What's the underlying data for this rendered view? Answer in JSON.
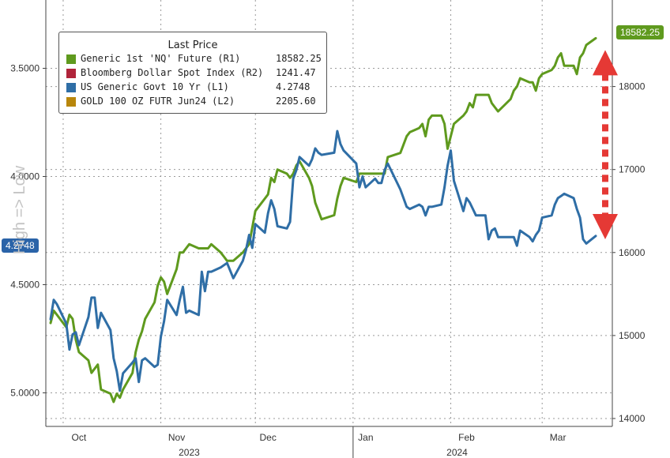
{
  "chart_data": {
    "type": "line",
    "title": "",
    "legend": {
      "title": "Last Price",
      "placement": "top-left",
      "entries": [
        {
          "label": "Generic 1st 'NQ' Future (R1)",
          "value": "18582.25",
          "color": "#5f9a1e"
        },
        {
          "label": "Bloomberg Dollar Spot Index (R2)",
          "value": "1241.47",
          "color": "#b0243a"
        },
        {
          "label": "US Generic Govt 10 Yr (L1)",
          "value": "4.2748",
          "color": "#2f6ea6"
        },
        {
          "label": "GOLD 100 OZ FUTR Jun24 (L2)",
          "value": "2205.60",
          "color": "#b8860b"
        }
      ]
    },
    "left_axis": {
      "inverted": true,
      "range": [
        3.25,
        5.25
      ],
      "ticks": [
        "3.5000",
        "4.0000",
        "4.5000",
        "5.0000"
      ],
      "current_label": "4.2748",
      "side_label": "High => Low"
    },
    "right_axis": {
      "range": [
        13800,
        18900
      ],
      "ticks": [
        "14000",
        "15000",
        "16000",
        "17000",
        "18000"
      ],
      "current_label": "18582.25"
    },
    "x_axis": {
      "start": "2023-09-27",
      "end": "2024-03-18",
      "months": [
        {
          "label": "Oct",
          "date": "2023-10-06"
        },
        {
          "label": "Nov",
          "date": "2023-11-06"
        },
        {
          "label": "Dec",
          "date": "2023-12-05"
        },
        {
          "label": "Jan",
          "date": "2024-01-05"
        },
        {
          "label": "Feb",
          "date": "2024-02-06"
        },
        {
          "label": "Mar",
          "date": "2024-03-06"
        }
      ],
      "years": [
        {
          "label": "2023",
          "date": "2023-11-10"
        },
        {
          "label": "2024",
          "date": "2024-02-03"
        }
      ],
      "month_separators": [
        "2023-10-01",
        "2023-11-01",
        "2023-12-01",
        "2024-01-01",
        "2024-02-01",
        "2024-03-01"
      ],
      "year_separator": "2024-01-01"
    },
    "grid": true,
    "series": [
      {
        "name": "Generic 1st 'NQ' Future (R1)",
        "axis": "right",
        "color": "#5f9a1e",
        "x": [
          "2023-09-27",
          "2023-09-28",
          "2023-09-29",
          "2023-10-02",
          "2023-10-03",
          "2023-10-04",
          "2023-10-05",
          "2023-10-06",
          "2023-10-09",
          "2023-10-10",
          "2023-10-11",
          "2023-10-12",
          "2023-10-13",
          "2023-10-16",
          "2023-10-17",
          "2023-10-18",
          "2023-10-19",
          "2023-10-20",
          "2023-10-23",
          "2023-10-24",
          "2023-10-25",
          "2023-10-26",
          "2023-10-27",
          "2023-10-30",
          "2023-10-31",
          "2023-11-01",
          "2023-11-02",
          "2023-11-03",
          "2023-11-06",
          "2023-11-07",
          "2023-11-08",
          "2023-11-09",
          "2023-11-10",
          "2023-11-13",
          "2023-11-14",
          "2023-11-15",
          "2023-11-16",
          "2023-11-17",
          "2023-11-20",
          "2023-11-21",
          "2023-11-22",
          "2023-11-24",
          "2023-11-27",
          "2023-11-28",
          "2023-11-29",
          "2023-11-30",
          "2023-12-01",
          "2023-12-04",
          "2023-12-05",
          "2023-12-06",
          "2023-12-07",
          "2023-12-08",
          "2023-12-11",
          "2023-12-12",
          "2023-12-13",
          "2023-12-14",
          "2023-12-15",
          "2023-12-18",
          "2023-12-19",
          "2023-12-20",
          "2023-12-21",
          "2023-12-22",
          "2023-12-26",
          "2023-12-27",
          "2023-12-28",
          "2023-12-29",
          "2024-01-02",
          "2024-01-03",
          "2024-01-04",
          "2024-01-05",
          "2024-01-08",
          "2024-01-09",
          "2024-01-10",
          "2024-01-11",
          "2024-01-12",
          "2024-01-16",
          "2024-01-17",
          "2024-01-18",
          "2024-01-19",
          "2024-01-22",
          "2024-01-23",
          "2024-01-24",
          "2024-01-25",
          "2024-01-26",
          "2024-01-29",
          "2024-01-30",
          "2024-01-31",
          "2024-02-01",
          "2024-02-02",
          "2024-02-05",
          "2024-02-06",
          "2024-02-07",
          "2024-02-08",
          "2024-02-09",
          "2024-02-12",
          "2024-02-13",
          "2024-02-14",
          "2024-02-15",
          "2024-02-16",
          "2024-02-20",
          "2024-02-21",
          "2024-02-22",
          "2024-02-23",
          "2024-02-26",
          "2024-02-27",
          "2024-02-28",
          "2024-02-29",
          "2024-03-01",
          "2024-03-04",
          "2024-03-05",
          "2024-03-06",
          "2024-03-07",
          "2024-03-08",
          "2024-03-11",
          "2024-03-12",
          "2024-03-13",
          "2024-03-14",
          "2024-03-15",
          "2024-03-18"
        ],
        "y": [
          15150,
          15300,
          15250,
          15100,
          15250,
          15200,
          14950,
          14800,
          14700,
          14550,
          14600,
          14650,
          14350,
          14300,
          14200,
          14300,
          14250,
          14350,
          14550,
          14800,
          14950,
          15050,
          15200,
          15400,
          15600,
          15700,
          15650,
          15500,
          15800,
          16000,
          16000,
          16050,
          16100,
          16050,
          16050,
          16050,
          16050,
          16100,
          16000,
          15950,
          15900,
          15900,
          16000,
          16050,
          16100,
          16300,
          16500,
          16650,
          16700,
          16900,
          16850,
          17000,
          16950,
          16900,
          16950,
          17050,
          17100,
          16900,
          16800,
          16600,
          16500,
          16400,
          16450,
          16650,
          16800,
          16900,
          16850,
          16950,
          16950,
          16950,
          16950,
          16950,
          16950,
          16950,
          17150,
          17200,
          17300,
          17400,
          17450,
          17500,
          17550,
          17400,
          17600,
          17650,
          17650,
          17550,
          17250,
          17400,
          17550,
          17650,
          17700,
          17800,
          17750,
          17900,
          17900,
          17900,
          17800,
          17750,
          17700,
          17850,
          17950,
          18000,
          18100,
          18050,
          18050,
          17950,
          18100,
          18150,
          18200,
          18250,
          18350,
          18400,
          18250,
          18250,
          18150,
          18350,
          18400,
          18500,
          18582.25
        ]
      },
      {
        "name": "US Generic Govt 10 Yr (L1)",
        "axis": "left",
        "color": "#2f6ea6",
        "x": [
          "2023-09-27",
          "2023-09-28",
          "2023-09-29",
          "2023-10-02",
          "2023-10-03",
          "2023-10-04",
          "2023-10-05",
          "2023-10-06",
          "2023-10-09",
          "2023-10-10",
          "2023-10-11",
          "2023-10-12",
          "2023-10-13",
          "2023-10-16",
          "2023-10-17",
          "2023-10-18",
          "2023-10-19",
          "2023-10-20",
          "2023-10-23",
          "2023-10-24",
          "2023-10-25",
          "2023-10-26",
          "2023-10-27",
          "2023-10-30",
          "2023-10-31",
          "2023-11-01",
          "2023-11-02",
          "2023-11-03",
          "2023-11-06",
          "2023-11-07",
          "2023-11-08",
          "2023-11-09",
          "2023-11-10",
          "2023-11-13",
          "2023-11-14",
          "2023-11-15",
          "2023-11-16",
          "2023-11-17",
          "2023-11-20",
          "2023-11-21",
          "2023-11-22",
          "2023-11-24",
          "2023-11-27",
          "2023-11-28",
          "2023-11-29",
          "2023-11-30",
          "2023-12-01",
          "2023-12-04",
          "2023-12-05",
          "2023-12-06",
          "2023-12-07",
          "2023-12-08",
          "2023-12-11",
          "2023-12-12",
          "2023-12-13",
          "2023-12-14",
          "2023-12-15",
          "2023-12-18",
          "2023-12-19",
          "2023-12-20",
          "2023-12-21",
          "2023-12-22",
          "2023-12-26",
          "2023-12-27",
          "2023-12-28",
          "2023-12-29",
          "2024-01-02",
          "2024-01-03",
          "2024-01-04",
          "2024-01-05",
          "2024-01-08",
          "2024-01-09",
          "2024-01-10",
          "2024-01-11",
          "2024-01-12",
          "2024-01-16",
          "2024-01-17",
          "2024-01-18",
          "2024-01-19",
          "2024-01-22",
          "2024-01-23",
          "2024-01-24",
          "2024-01-25",
          "2024-01-26",
          "2024-01-29",
          "2024-01-30",
          "2024-01-31",
          "2024-02-01",
          "2024-02-02",
          "2024-02-05",
          "2024-02-06",
          "2024-02-07",
          "2024-02-08",
          "2024-02-09",
          "2024-02-12",
          "2024-02-13",
          "2024-02-14",
          "2024-02-15",
          "2024-02-16",
          "2024-02-20",
          "2024-02-21",
          "2024-02-22",
          "2024-02-23",
          "2024-02-26",
          "2024-02-27",
          "2024-02-28",
          "2024-02-29",
          "2024-03-01",
          "2024-03-04",
          "2024-03-05",
          "2024-03-06",
          "2024-03-07",
          "2024-03-08",
          "2024-03-11",
          "2024-03-12",
          "2024-03-13",
          "2024-03-14",
          "2024-03-15",
          "2024-03-18"
        ],
        "y": [
          4.66,
          4.57,
          4.59,
          4.68,
          4.8,
          4.73,
          4.72,
          4.78,
          4.65,
          4.56,
          4.56,
          4.7,
          4.63,
          4.71,
          4.84,
          4.9,
          4.99,
          4.91,
          4.86,
          4.84,
          4.95,
          4.85,
          4.84,
          4.88,
          4.87,
          4.74,
          4.67,
          4.57,
          4.64,
          4.57,
          4.51,
          4.63,
          4.62,
          4.64,
          4.44,
          4.53,
          4.44,
          4.44,
          4.42,
          4.41,
          4.4,
          4.47,
          4.39,
          4.34,
          4.27,
          4.33,
          4.22,
          4.26,
          4.17,
          4.11,
          4.15,
          4.23,
          4.24,
          4.21,
          4.01,
          3.97,
          3.91,
          3.95,
          3.92,
          3.87,
          3.89,
          3.9,
          3.89,
          3.79,
          3.85,
          3.88,
          3.94,
          4.05,
          4.0,
          4.05,
          4.01,
          4.03,
          4.03,
          3.97,
          3.94,
          4.06,
          4.1,
          4.14,
          4.15,
          4.13,
          4.14,
          4.18,
          4.14,
          4.14,
          4.13,
          4.05,
          3.95,
          3.88,
          4.02,
          4.16,
          4.1,
          4.12,
          4.15,
          4.18,
          4.18,
          4.29,
          4.25,
          4.24,
          4.28,
          4.28,
          4.28,
          4.32,
          4.25,
          4.28,
          4.3,
          4.27,
          4.25,
          4.19,
          4.18,
          4.13,
          4.1,
          4.09,
          4.08,
          4.1,
          4.15,
          4.19,
          4.29,
          4.31,
          4.2748
        ]
      }
    ]
  },
  "annotation": {
    "arrow_color": "#e53935"
  }
}
